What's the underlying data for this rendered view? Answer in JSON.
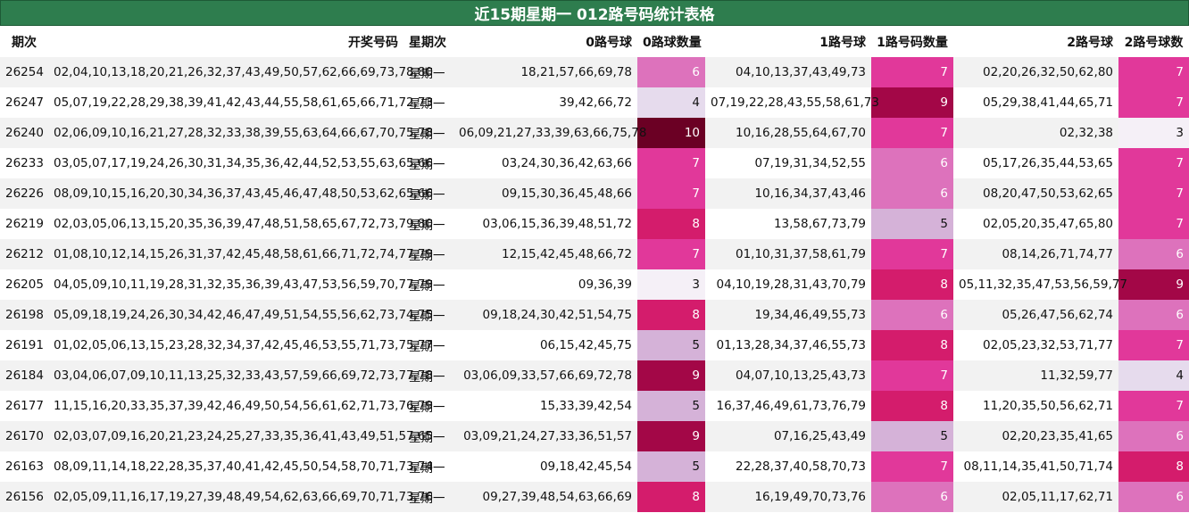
{
  "title": "近15期星期一 012路号码统计表格",
  "chart_data": {
    "type": "table",
    "columns": [
      "期次",
      "开奖号码",
      "星期次",
      "0路号球",
      "0路球数量",
      "1路号球",
      "1路号码数量",
      "2路号球",
      "2路号球数"
    ],
    "rows": [
      {
        "issue": "26254",
        "numbers": "02,04,10,13,18,20,21,26,32,37,43,49,50,57,62,66,69,73,78,80",
        "weekday": "星期一",
        "road0": "18,21,57,66,69,78",
        "road0_count": 6,
        "road1": "04,10,13,37,43,49,73",
        "road1_count": 7,
        "road2": "02,20,26,32,50,62,80",
        "road2_count": 7
      },
      {
        "issue": "26247",
        "numbers": "05,07,19,22,28,29,38,39,41,42,43,44,55,58,61,65,66,71,72,73",
        "weekday": "星期一",
        "road0": "39,42,66,72",
        "road0_count": 4,
        "road1": "07,19,22,28,43,55,58,61,73",
        "road1_count": 9,
        "road2": "05,29,38,41,44,65,71",
        "road2_count": 7
      },
      {
        "issue": "26240",
        "numbers": "02,06,09,10,16,21,27,28,32,33,38,39,55,63,64,66,67,70,75,78",
        "weekday": "星期一",
        "road0": "06,09,21,27,33,39,63,66,75,78",
        "road0_count": 10,
        "road1": "10,16,28,55,64,67,70",
        "road1_count": 7,
        "road2": "02,32,38",
        "road2_count": 3
      },
      {
        "issue": "26233",
        "numbers": "03,05,07,17,19,24,26,30,31,34,35,36,42,44,52,53,55,63,65,66",
        "weekday": "星期一",
        "road0": "03,24,30,36,42,63,66",
        "road0_count": 7,
        "road1": "07,19,31,34,52,55",
        "road1_count": 6,
        "road2": "05,17,26,35,44,53,65",
        "road2_count": 7
      },
      {
        "issue": "26226",
        "numbers": "08,09,10,15,16,20,30,34,36,37,43,45,46,47,48,50,53,62,65,66",
        "weekday": "星期一",
        "road0": "09,15,30,36,45,48,66",
        "road0_count": 7,
        "road1": "10,16,34,37,43,46",
        "road1_count": 6,
        "road2": "08,20,47,50,53,62,65",
        "road2_count": 7
      },
      {
        "issue": "26219",
        "numbers": "02,03,05,06,13,15,20,35,36,39,47,48,51,58,65,67,72,73,79,80",
        "weekday": "星期一",
        "road0": "03,06,15,36,39,48,51,72",
        "road0_count": 8,
        "road1": "13,58,67,73,79",
        "road1_count": 5,
        "road2": "02,05,20,35,47,65,80",
        "road2_count": 7
      },
      {
        "issue": "26212",
        "numbers": "01,08,10,12,14,15,26,31,37,42,45,48,58,61,66,71,72,74,77,79",
        "weekday": "星期一",
        "road0": "12,15,42,45,48,66,72",
        "road0_count": 7,
        "road1": "01,10,31,37,58,61,79",
        "road1_count": 7,
        "road2": "08,14,26,71,74,77",
        "road2_count": 6
      },
      {
        "issue": "26205",
        "numbers": "04,05,09,10,11,19,28,31,32,35,36,39,43,47,53,56,59,70,77,79",
        "weekday": "星期一",
        "road0": "09,36,39",
        "road0_count": 3,
        "road1": "04,10,19,28,31,43,70,79",
        "road1_count": 8,
        "road2": "05,11,32,35,47,53,56,59,77",
        "road2_count": 9
      },
      {
        "issue": "26198",
        "numbers": "05,09,18,19,24,26,30,34,42,46,47,49,51,54,55,56,62,73,74,75",
        "weekday": "星期一",
        "road0": "09,18,24,30,42,51,54,75",
        "road0_count": 8,
        "road1": "19,34,46,49,55,73",
        "road1_count": 6,
        "road2": "05,26,47,56,62,74",
        "road2_count": 6
      },
      {
        "issue": "26191",
        "numbers": "01,02,05,06,13,15,23,28,32,34,37,42,45,46,53,55,71,73,75,77",
        "weekday": "星期一",
        "road0": "06,15,42,45,75",
        "road0_count": 5,
        "road1": "01,13,28,34,37,46,55,73",
        "road1_count": 8,
        "road2": "02,05,23,32,53,71,77",
        "road2_count": 7
      },
      {
        "issue": "26184",
        "numbers": "03,04,06,07,09,10,11,13,25,32,33,43,57,59,66,69,72,73,77,78",
        "weekday": "星期一",
        "road0": "03,06,09,33,57,66,69,72,78",
        "road0_count": 9,
        "road1": "04,07,10,13,25,43,73",
        "road1_count": 7,
        "road2": "11,32,59,77",
        "road2_count": 4
      },
      {
        "issue": "26177",
        "numbers": "11,15,16,20,33,35,37,39,42,46,49,50,54,56,61,62,71,73,76,79",
        "weekday": "星期一",
        "road0": "15,33,39,42,54",
        "road0_count": 5,
        "road1": "16,37,46,49,61,73,76,79",
        "road1_count": 8,
        "road2": "11,20,35,50,56,62,71",
        "road2_count": 7
      },
      {
        "issue": "26170",
        "numbers": "02,03,07,09,16,20,21,23,24,25,27,33,35,36,41,43,49,51,57,65",
        "weekday": "星期一",
        "road0": "03,09,21,24,27,33,36,51,57",
        "road0_count": 9,
        "road1": "07,16,25,43,49",
        "road1_count": 5,
        "road2": "02,20,23,35,41,65",
        "road2_count": 6
      },
      {
        "issue": "26163",
        "numbers": "08,09,11,14,18,22,28,35,37,40,41,42,45,50,54,58,70,71,73,74",
        "weekday": "星期一",
        "road0": "09,18,42,45,54",
        "road0_count": 5,
        "road1": "22,28,37,40,58,70,73",
        "road1_count": 7,
        "road2": "08,11,14,35,41,50,71,74",
        "road2_count": 8
      },
      {
        "issue": "26156",
        "numbers": "02,05,09,11,16,17,19,27,39,48,49,54,62,63,66,69,70,71,73,76",
        "weekday": "星期一",
        "road0": "09,27,39,48,54,63,66,69",
        "road0_count": 8,
        "road1": "16,19,49,70,73,76",
        "road1_count": 6,
        "road2": "02,05,11,17,62,71",
        "road2_count": 6
      }
    ]
  },
  "heat_colors": {
    "3": "#f5f0f7",
    "4": "#e6dbed",
    "5": "#d5b2d8",
    "6": "#dd72bc",
    "7": "#e1389a",
    "8": "#d41c6c",
    "9": "#a30747",
    "10": "#6b0024"
  },
  "heat_light_text": "#ffffff",
  "heat_dark_text": "#111111"
}
